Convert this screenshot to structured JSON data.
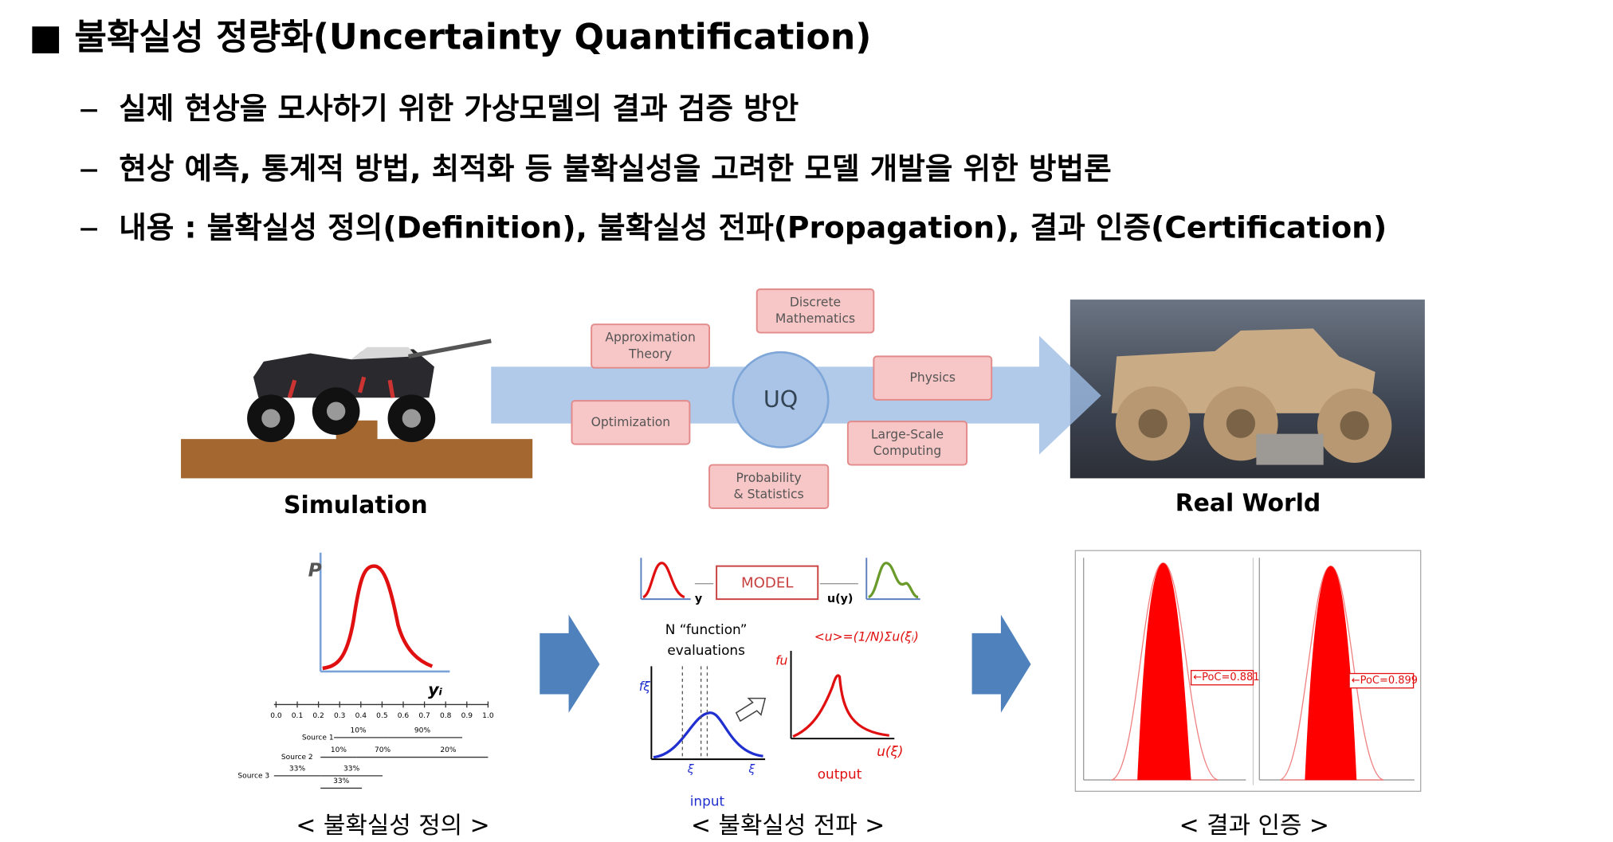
{
  "header": {
    "title": "■ 불확실성 정량화(Uncertainty Quantification)"
  },
  "bullets": [
    "실제 현상을 모사하기 위한 가상모델의 결과 검증 방안",
    "현상 예측, 통계적 방법, 최적화 등 불확실성을 고려한 모델 개발을 위한 방법론",
    "내용 : 불확실성 정의(Definition), 불확실성 전파(Propagation), 결과 인증(Certification)"
  ],
  "uq_diagram": {
    "center": "UQ",
    "simulation": "Simulation",
    "real_world": "Real World",
    "fields": [
      [
        "Discrete",
        "Mathematics"
      ],
      [
        "Approximation",
        "Theory"
      ],
      [
        "Physics"
      ],
      [
        "Optimization"
      ],
      [
        "Large-Scale",
        "Computing"
      ],
      [
        "Probability",
        "& Statistics"
      ]
    ]
  },
  "definition": {
    "p_label": "P",
    "x_label": "yᵢ",
    "ticks": [
      "0.0",
      "0.1",
      "0.2",
      "0.3",
      "0.4",
      "0.5",
      "0.6",
      "0.7",
      "0.8",
      "0.9",
      "1.0"
    ],
    "sources": [
      {
        "label": "Source 1",
        "parts": [
          "10%",
          "90%"
        ]
      },
      {
        "label": "Source 2",
        "parts": [
          "10%",
          "70%",
          "20%"
        ]
      },
      {
        "label": "Source 3",
        "parts": [
          "33%",
          "33%",
          "33%"
        ]
      }
    ],
    "caption": "< 불확실성 정의 >"
  },
  "propagation": {
    "model": "MODEL",
    "y": "y",
    "uy": "u(y)",
    "evaluations": [
      "N “function”",
      "evaluations"
    ],
    "formula": "<u>=(1/N)Σu(ξᵢ)",
    "f_xi": "fξ",
    "f_u": "fu",
    "xi": "ξ",
    "u_xi": "u(ξ)",
    "output": "output",
    "input": "input",
    "caption": "< 불확실성 전파 >"
  },
  "certification": {
    "poc": [
      "←PoC=0.881",
      "←PoC=0.899"
    ],
    "caption": "< 결과 인증 >"
  }
}
